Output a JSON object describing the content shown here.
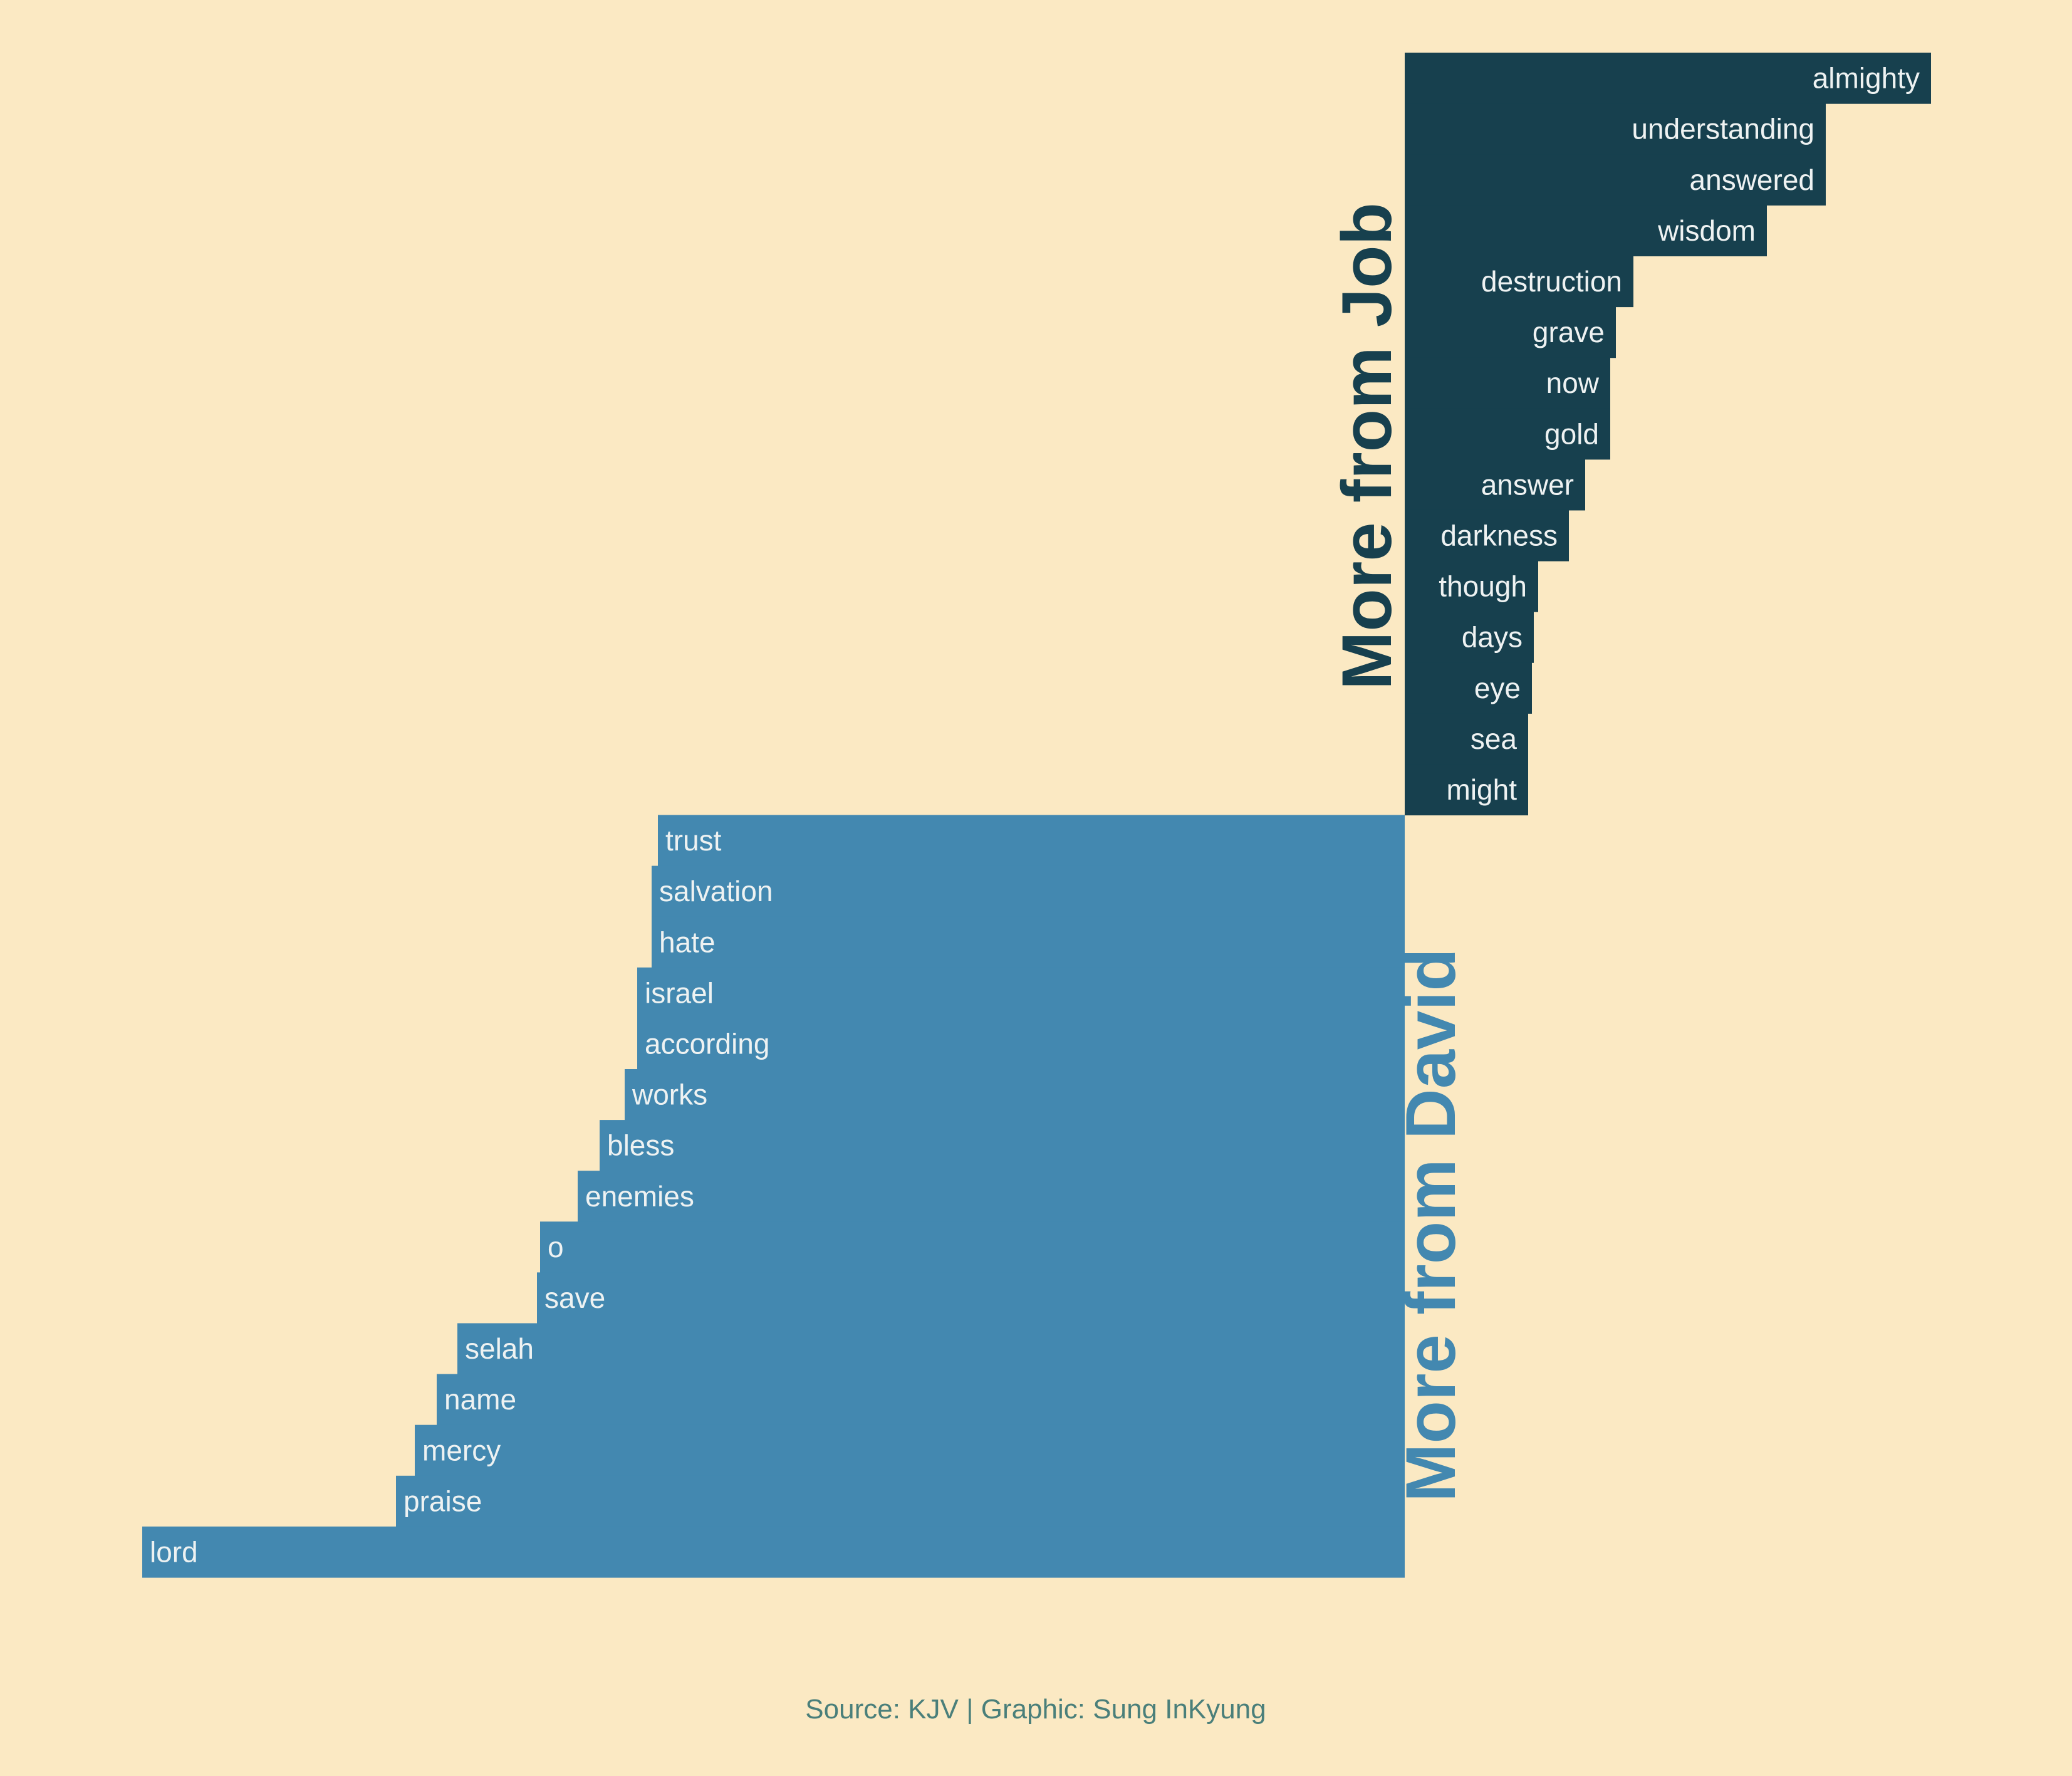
{
  "chart_data": {
    "type": "bar",
    "orientation": "diverging-horizontal",
    "colors": {
      "job": "#17404e",
      "david": "#4388b0",
      "background": "#fbe9c3",
      "label_text": "#eef2f2",
      "caption": "#4a7f7a"
    },
    "groups": [
      {
        "name": "job",
        "title": "More from Job",
        "categories": [
          "almighty",
          "understanding",
          "answered",
          "wisdom",
          "destruction",
          "grave",
          "now",
          "gold",
          "answer",
          "darkness",
          "though",
          "days",
          "eye",
          "sea",
          "might"
        ],
        "values": [
          840,
          672,
          672,
          578,
          365,
          337,
          328,
          328,
          288,
          262,
          213,
          206,
          203,
          197,
          197
        ]
      },
      {
        "name": "david",
        "title": "More from David",
        "categories": [
          "trust",
          "salvation",
          "hate",
          "israel",
          "according",
          "works",
          "bless",
          "enemies",
          "o",
          "save",
          "selah",
          "name",
          "mercy",
          "praise",
          "lord"
        ],
        "values": [
          1192,
          1202,
          1202,
          1225,
          1225,
          1245,
          1285,
          1320,
          1380,
          1385,
          1512,
          1545,
          1580,
          1610,
          2015
        ]
      }
    ],
    "caption": "Source: KJV | Graphic: Sung InKyung"
  }
}
